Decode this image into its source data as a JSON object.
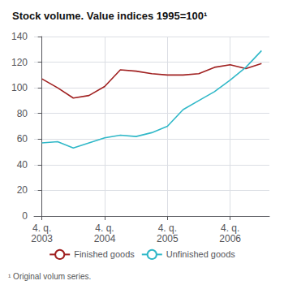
{
  "chart_data": {
    "type": "line",
    "title": "Stock volume. Value indices 1995=100¹",
    "annotations": [
      "¹ Original volum series."
    ],
    "categories": [
      "4. q.\n2003",
      null,
      null,
      null,
      "4. q.\n2004",
      null,
      null,
      null,
      "4. q.\n2005",
      null,
      null,
      null,
      "4. q.\n2006",
      null,
      null
    ],
    "series": [
      {
        "name": "Finished goods",
        "color": "#a02020",
        "values": [
          107,
          100,
          92,
          94,
          101,
          114,
          113,
          111,
          110,
          110,
          111,
          116,
          118,
          115,
          119
        ]
      },
      {
        "name": "Unfinished goods",
        "color": "#30b8c8",
        "values": [
          57,
          58,
          53,
          57,
          61,
          63,
          62,
          65,
          70,
          83,
          90,
          97,
          106,
          116,
          129
        ]
      }
    ],
    "ylim": [
      0,
      140
    ],
    "yticks": [
      0,
      20,
      40,
      60,
      80,
      100,
      120,
      140
    ],
    "grid": true,
    "legend": "bottom"
  }
}
